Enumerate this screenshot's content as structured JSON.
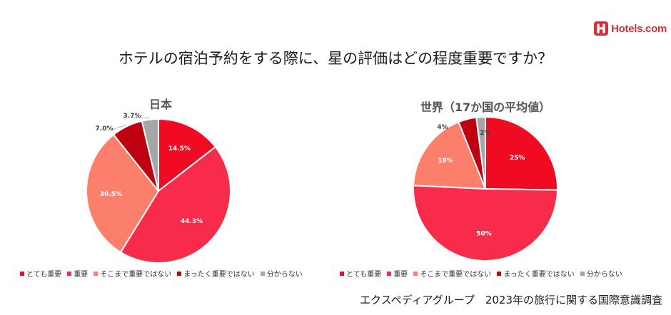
{
  "brand": {
    "name": "Hotels.com",
    "color": "#d32f3a"
  },
  "title": "ホテルの宿泊予約をする際に、星の評価はどの程度重要ですか？",
  "source": "エクスペディアグループ　2023年の旅行に関する国際意識調査",
  "chart_data": [
    {
      "type": "pie",
      "title": "日本",
      "categories": [
        "とても重要",
        "重要",
        "そこまで重要ではない",
        "まったく重要ではない",
        "分からない"
      ],
      "values": [
        14.5,
        44.3,
        30.5,
        7.0,
        3.7
      ],
      "labels": [
        "14.5%",
        "44.3%",
        "30.5%",
        "7.0%",
        "3.7%"
      ],
      "colors": [
        "#ef0b22",
        "#f82b4b",
        "#fb7f6b",
        "#be0010",
        "#a6a6a6"
      ],
      "legend": "bottom"
    },
    {
      "type": "pie",
      "title": "世界（17か国の平均値）",
      "categories": [
        "とても重要",
        "重要",
        "そこまで重要ではない",
        "まったく重要ではない",
        "分からない"
      ],
      "values": [
        25,
        50,
        18,
        4,
        2
      ],
      "labels": [
        "25%",
        "50%",
        "18%",
        "4%",
        "2%"
      ],
      "colors": [
        "#ef0b22",
        "#f82b4b",
        "#fb7f6b",
        "#be0010",
        "#a6a6a6"
      ],
      "legend": "bottom"
    }
  ]
}
